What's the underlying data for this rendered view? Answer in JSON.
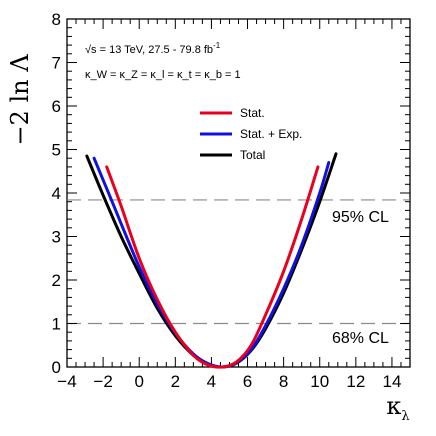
{
  "chart_data": {
    "type": "line",
    "xlabel": "κ_λ",
    "ylabel": "−2 ln Λ",
    "xlim": [
      -4,
      15
    ],
    "ylim": [
      0,
      8
    ],
    "xticks": [
      "−4",
      "−2",
      "0",
      "2",
      "4",
      "6",
      "8",
      "10",
      "12",
      "14"
    ],
    "yticks": [
      "0",
      "1",
      "2",
      "3",
      "4",
      "5",
      "6",
      "7",
      "8"
    ],
    "annotations": {
      "energy": "√s = 13 TeV, 27.5 - 79.8 fb",
      "energy_sup": "-1",
      "couplings": "κ_W = κ_Z = κ_l = κ_t = κ_b = 1"
    },
    "reference_lines": [
      {
        "y": 3.84,
        "label": "95% CL"
      },
      {
        "y": 1.0,
        "label": "68% CL"
      }
    ],
    "legend_position": "top-center",
    "series": [
      {
        "name": "Stat.",
        "color": "#e8001c",
        "x": [
          -1.8,
          -1.0,
          0.0,
          1.0,
          2.0,
          3.0,
          3.8,
          4.6,
          5.4,
          6.2,
          7.0,
          8.0,
          9.0,
          9.9
        ],
        "y": [
          4.6,
          3.7,
          2.5,
          1.55,
          0.8,
          0.27,
          0.05,
          0.0,
          0.12,
          0.5,
          1.2,
          2.2,
          3.4,
          4.6
        ]
      },
      {
        "name": "Stat. + Exp.",
        "color": "#1010e0",
        "x": [
          -2.5,
          -1.5,
          0.0,
          1.0,
          2.0,
          3.0,
          3.8,
          4.6,
          5.4,
          6.2,
          7.0,
          8.0,
          9.0,
          10.0,
          10.5
        ],
        "y": [
          4.8,
          3.8,
          2.3,
          1.45,
          0.78,
          0.3,
          0.08,
          0.0,
          0.1,
          0.4,
          0.95,
          1.8,
          2.8,
          4.0,
          4.7
        ]
      },
      {
        "name": "Total",
        "color": "#000000",
        "x": [
          -2.9,
          -2.0,
          -1.0,
          0.0,
          1.0,
          2.0,
          3.0,
          3.8,
          4.6,
          5.4,
          6.2,
          7.0,
          8.0,
          9.0,
          10.0,
          10.9
        ],
        "y": [
          4.85,
          3.95,
          3.0,
          2.15,
          1.35,
          0.72,
          0.27,
          0.06,
          0.0,
          0.09,
          0.38,
          0.88,
          1.7,
          2.7,
          3.8,
          4.9
        ]
      }
    ]
  }
}
